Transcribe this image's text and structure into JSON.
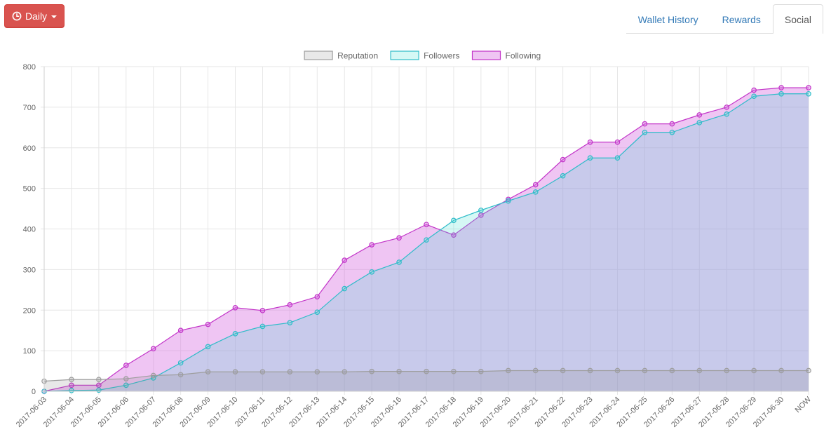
{
  "toolbar": {
    "period_label": "Daily",
    "period_icon": "clock-icon"
  },
  "tabs": [
    {
      "label": "Wallet History",
      "active": false
    },
    {
      "label": "Rewards",
      "active": false
    },
    {
      "label": "Social",
      "active": true
    }
  ],
  "chart_data": {
    "type": "line",
    "title": "",
    "xlabel": "",
    "ylabel": "",
    "ylim": [
      0,
      800
    ],
    "yticks": [
      0,
      100,
      200,
      300,
      400,
      500,
      600,
      700,
      800
    ],
    "grid": true,
    "legend_position": "top-center",
    "categories": [
      "2017-06-03",
      "2017-06-04",
      "2017-06-05",
      "2017-06-06",
      "2017-06-07",
      "2017-06-08",
      "2017-06-09",
      "2017-06-10",
      "2017-06-11",
      "2017-06-12",
      "2017-06-13",
      "2017-06-14",
      "2017-06-15",
      "2017-06-16",
      "2017-06-17",
      "2017-06-18",
      "2017-06-19",
      "2017-06-20",
      "2017-06-21",
      "2017-06-22",
      "2017-06-23",
      "2017-06-24",
      "2017-06-25",
      "2017-06-26",
      "2017-06-27",
      "2017-06-28",
      "2017-06-29",
      "2017-06-30",
      "NOW"
    ],
    "series": [
      {
        "name": "Reputation",
        "line_color": "#9e9e9e",
        "fill_color": "rgba(128,128,128,0.18)",
        "point_color": "#9e9e9e",
        "values": [
          25,
          29,
          29,
          31,
          39,
          41,
          48,
          48,
          48,
          48,
          48,
          48,
          49,
          49,
          49,
          49,
          49,
          51,
          51,
          51,
          51,
          51,
          51,
          51,
          51,
          51,
          51,
          51,
          51
        ]
      },
      {
        "name": "Followers",
        "line_color": "#2fbcc9",
        "fill_color": "rgba(64,224,208,0.22)",
        "point_color": "#2fbcc9",
        "values": [
          0,
          2,
          3,
          15,
          33,
          70,
          110,
          142,
          160,
          169,
          195,
          253,
          294,
          318,
          373,
          421,
          446,
          469,
          491,
          531,
          575,
          575,
          638,
          638,
          662,
          683,
          727,
          733,
          733
        ]
      },
      {
        "name": "Following",
        "line_color": "#c233c8",
        "fill_color": "rgba(215,110,225,0.40)",
        "point_color": "#c233c8",
        "values": [
          0,
          15,
          15,
          64,
          105,
          150,
          165,
          206,
          199,
          213,
          233,
          323,
          361,
          378,
          411,
          385,
          434,
          473,
          509,
          571,
          614,
          614,
          659,
          659,
          681,
          700,
          742,
          748,
          748
        ]
      }
    ]
  }
}
